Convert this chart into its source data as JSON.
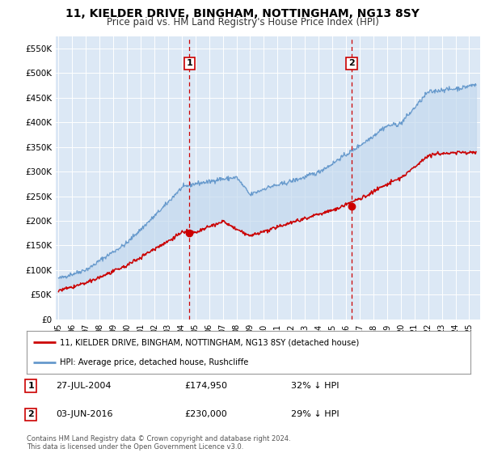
{
  "title": "11, KIELDER DRIVE, BINGHAM, NOTTINGHAM, NG13 8SY",
  "subtitle": "Price paid vs. HM Land Registry's House Price Index (HPI)",
  "background_color": "#ffffff",
  "plot_bg_color": "#dce8f5",
  "ylabel_color": "#333333",
  "ylim": [
    0,
    575000
  ],
  "yticks": [
    0,
    50000,
    100000,
    150000,
    200000,
    250000,
    300000,
    350000,
    400000,
    450000,
    500000,
    550000
  ],
  "ytick_labels": [
    "£0",
    "£50K",
    "£100K",
    "£150K",
    "£200K",
    "£250K",
    "£300K",
    "£350K",
    "£400K",
    "£450K",
    "£500K",
    "£550K"
  ],
  "xlim_start": 1994.8,
  "xlim_end": 2025.8,
  "sale1_x": 2004.57,
  "sale1_y": 174950,
  "sale1_label": "1",
  "sale1_date": "27-JUL-2004",
  "sale1_price": "£174,950",
  "sale1_hpi": "32% ↓ HPI",
  "sale2_x": 2016.42,
  "sale2_y": 230000,
  "sale2_label": "2",
  "sale2_date": "03-JUN-2016",
  "sale2_price": "£230,000",
  "sale2_hpi": "29% ↓ HPI",
  "red_line_color": "#cc0000",
  "blue_line_color": "#6699cc",
  "fill_color": "#dce8f5",
  "dashed_line_color": "#cc0000",
  "legend_label_red": "11, KIELDER DRIVE, BINGHAM, NOTTINGHAM, NG13 8SY (detached house)",
  "legend_label_blue": "HPI: Average price, detached house, Rushcliffe",
  "footer": "Contains HM Land Registry data © Crown copyright and database right 2024.\nThis data is licensed under the Open Government Licence v3.0."
}
